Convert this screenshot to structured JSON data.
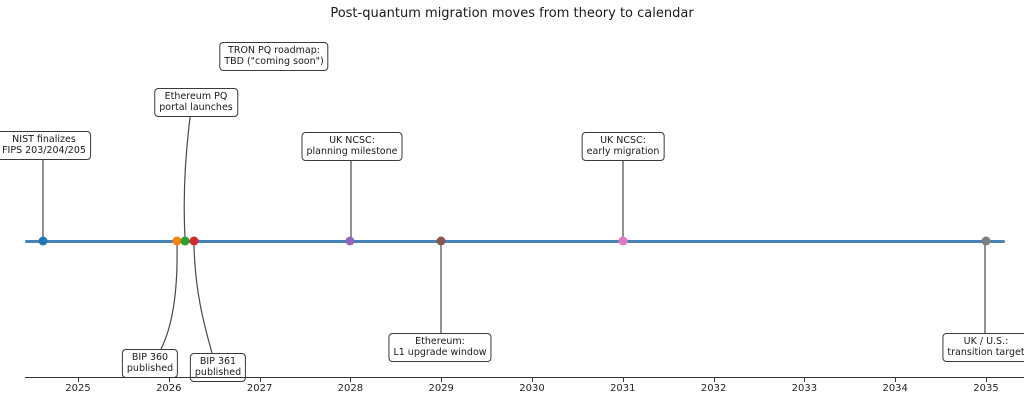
{
  "chart_data": {
    "type": "timeline",
    "title": "Post-quantum migration moves from theory to calendar",
    "timeline_color": "#4682b4",
    "leader_color": "#4a4a4a",
    "x_ticks": [
      "2025",
      "2026",
      "2027",
      "2028",
      "2029",
      "2030",
      "2031",
      "2032",
      "2033",
      "2034",
      "2035"
    ],
    "x_range": [
      2024.4,
      2035.4
    ],
    "events": [
      {
        "id": "nist",
        "label_lines": [
          "NIST finalizes",
          "FIPS 203/204/205"
        ],
        "year": 2024.62,
        "dot_color": "#1f77b4",
        "label_side": "above"
      },
      {
        "id": "bip360",
        "label_lines": [
          "BIP 360",
          "published"
        ],
        "year": 2026.09,
        "dot_color": "#ff7f0e",
        "label_side": "below"
      },
      {
        "id": "eth-portal",
        "label_lines": [
          "Ethereum PQ",
          "portal launches"
        ],
        "year": 2026.18,
        "dot_color": "#2ca02c",
        "label_side": "above"
      },
      {
        "id": "bip361",
        "label_lines": [
          "BIP 361",
          "published"
        ],
        "year": 2026.28,
        "dot_color": "#d62728",
        "label_side": "below"
      },
      {
        "id": "tron",
        "label_lines": [
          "TRON PQ roadmap:",
          "TBD (\"coming soon\")"
        ],
        "year": null,
        "dot_color": null,
        "label_side": "above"
      },
      {
        "id": "uk-planning",
        "label_lines": [
          "UK NCSC:",
          "planning milestone"
        ],
        "year": 2028,
        "dot_color": "#9467bd",
        "label_side": "above"
      },
      {
        "id": "eth-l1",
        "label_lines": [
          "Ethereum:",
          "L1 upgrade window"
        ],
        "year": 2029,
        "dot_color": "#8c564b",
        "label_side": "below"
      },
      {
        "id": "uk-early",
        "label_lines": [
          "UK NCSC:",
          "early migration"
        ],
        "year": 2031,
        "dot_color": "#e377c2",
        "label_side": "above"
      },
      {
        "id": "uk-us",
        "label_lines": [
          "UK / U.S.:",
          "transition target"
        ],
        "year": 2035,
        "dot_color": "#7f7f7f",
        "label_side": "below"
      }
    ]
  }
}
